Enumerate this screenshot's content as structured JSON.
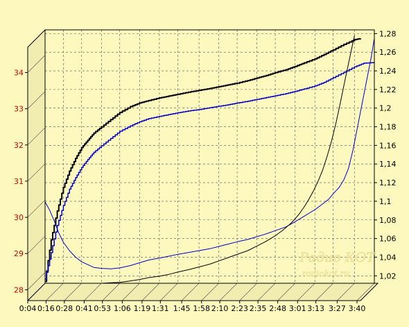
{
  "chart_data": {
    "type": "line",
    "title": "",
    "xlabel": "",
    "ylabel": "",
    "x_ticks": [
      "0:04",
      "0:16",
      "0:28",
      "0:41",
      "0:53",
      "1:06",
      "1:19",
      "1:31",
      "1:45",
      "1:58",
      "2:10",
      "2:23",
      "2:35",
      "2:48",
      "3:01",
      "3:13",
      "3:27",
      "3:40"
    ],
    "x_tick_seconds": [
      4,
      16,
      28,
      41,
      53,
      66,
      79,
      91,
      105,
      118,
      130,
      143,
      155,
      168,
      181,
      193,
      207,
      220
    ],
    "y_left": {
      "ticks": [
        "28",
        "29",
        "30",
        "31",
        "32",
        "33",
        "34"
      ],
      "range": [
        27.7,
        34.7
      ],
      "color": "#cc0000"
    },
    "y_right": {
      "ticks": [
        "1,02",
        "1,04",
        "1,06",
        "1,08",
        "1,1",
        "1,12",
        "1,14",
        "1,16",
        "1,18",
        "1,2",
        "1,22",
        "1,24",
        "1,26",
        "1,28"
      ],
      "range": [
        1.012,
        1.284
      ],
      "color": "#000000"
    },
    "grid": true,
    "legend": "none",
    "series": [
      {
        "color": "#000000",
        "axis": "left",
        "stroke_width": 2,
        "step": true,
        "x": [
          4,
          8,
          12,
          16,
          20,
          24,
          28,
          32,
          36,
          41,
          47,
          53,
          60,
          66,
          72,
          79,
          85,
          91,
          98,
          105,
          112,
          118,
          124,
          130,
          137,
          143,
          149,
          155,
          162,
          168,
          174,
          181,
          187,
          193,
          200,
          207,
          211
        ],
        "y": [
          27.75,
          28.9,
          29.7,
          30.35,
          30.8,
          31.15,
          31.45,
          31.65,
          31.85,
          32.02,
          32.22,
          32.42,
          32.58,
          32.68,
          32.75,
          32.82,
          32.87,
          32.92,
          32.98,
          33.03,
          33.08,
          33.13,
          33.18,
          33.23,
          33.3,
          33.37,
          33.44,
          33.52,
          33.6,
          33.69,
          33.79,
          33.9,
          34.02,
          34.15,
          34.3,
          34.43,
          34.46
        ]
      },
      {
        "color": "#0000cc",
        "axis": "left",
        "stroke_width": 1.5,
        "step": true,
        "x": [
          4,
          8,
          12,
          16,
          20,
          24,
          28,
          32,
          36,
          41,
          47,
          53,
          60,
          66,
          72,
          79,
          85,
          91,
          98,
          105,
          112,
          118,
          124,
          130,
          137,
          143,
          149,
          155,
          162,
          168,
          174,
          181,
          187,
          193,
          200,
          207,
          213,
          220
        ],
        "y": [
          27.82,
          28.55,
          29.3,
          29.85,
          30.3,
          30.62,
          30.9,
          31.12,
          31.32,
          31.5,
          31.7,
          31.9,
          32.05,
          32.16,
          32.25,
          32.31,
          32.36,
          32.41,
          32.46,
          32.5,
          32.55,
          32.59,
          32.63,
          32.68,
          32.73,
          32.78,
          32.83,
          32.88,
          32.94,
          33.0,
          33.07,
          33.15,
          33.25,
          33.38,
          33.53,
          33.68,
          33.78,
          33.8
        ]
      },
      {
        "color": "#0000cc",
        "axis": "right",
        "stroke_width": 1,
        "step": false,
        "x": [
          4,
          7,
          10,
          13,
          16,
          20,
          24,
          28,
          32,
          36,
          41,
          47,
          53,
          60,
          66,
          72,
          79,
          85,
          91,
          98,
          105,
          112,
          118,
          124,
          130,
          137,
          143,
          149,
          155,
          162,
          168,
          174,
          181,
          186,
          190,
          193,
          197,
          200,
          203,
          206,
          209,
          212,
          215,
          218,
          220
        ],
        "y": [
          1.0995,
          1.0905,
          1.079,
          1.066,
          1.056,
          1.047,
          1.04,
          1.035,
          1.032,
          1.029,
          1.028,
          1.0275,
          1.0285,
          1.031,
          1.034,
          1.037,
          1.039,
          1.041,
          1.043,
          1.045,
          1.047,
          1.049,
          1.0515,
          1.054,
          1.0565,
          1.059,
          1.062,
          1.065,
          1.0685,
          1.0725,
          1.078,
          1.084,
          1.091,
          1.097,
          1.102,
          1.108,
          1.115,
          1.123,
          1.135,
          1.155,
          1.18,
          1.205,
          1.23,
          1.255,
          1.275
        ]
      },
      {
        "color": "#000000",
        "axis": "right",
        "stroke_width": 1,
        "step": false,
        "x": [
          4,
          10,
          16,
          22,
          28,
          35,
          41,
          47,
          53,
          60,
          66,
          72,
          79,
          85,
          91,
          98,
          105,
          112,
          118,
          124,
          130,
          137,
          143,
          149,
          155,
          160,
          165,
          168,
          171,
          174,
          177,
          180,
          183,
          186,
          189,
          192,
          195,
          198,
          201,
          204,
          207
        ],
        "y": [
          1.0,
          1.003,
          1.006,
          1.008,
          1.0095,
          1.011,
          1.012,
          1.0125,
          1.013,
          1.0145,
          1.016,
          1.018,
          1.0195,
          1.0215,
          1.024,
          1.0265,
          1.0295,
          1.0325,
          1.036,
          1.0395,
          1.043,
          1.047,
          1.052,
          1.057,
          1.063,
          1.069,
          1.076,
          1.081,
          1.087,
          1.094,
          1.102,
          1.111,
          1.121,
          1.133,
          1.148,
          1.165,
          1.185,
          1.208,
          1.232,
          1.255,
          1.278
        ]
      }
    ]
  },
  "watermark": {
    "line1": "Радио КОТ",
    "line2": "radiokot.ru"
  }
}
